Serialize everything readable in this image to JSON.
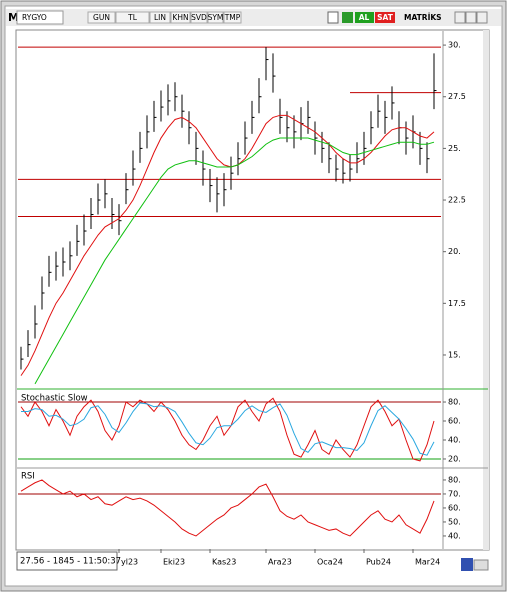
{
  "toolbar": {
    "symbol_prefix": "M",
    "symbol": "RYGYO",
    "buttons": [
      "GUN",
      "TL",
      "LIN",
      "KHN",
      "SVD",
      "SYM",
      "TMP"
    ],
    "buy": "AL",
    "sell": "SAT",
    "brand": "MATRİKS"
  },
  "status": "27.56 - 1845 - 11:50:37",
  "chart_data": [
    {
      "type": "ohlc",
      "color": "#000000",
      "close": [
        14.8,
        15.5,
        16.5,
        18,
        19,
        19.3,
        19.5,
        19.8,
        20.5,
        21,
        21.8,
        22.5,
        22.8,
        21.8,
        21.5,
        23,
        24,
        25,
        25.8,
        26.5,
        27,
        27.3,
        27.5,
        26.8,
        26,
        25,
        24,
        23.2,
        22.8,
        23,
        23.8,
        24.5,
        25.5,
        26.5,
        27.5,
        29.3,
        28.5,
        26.5,
        26,
        25.8,
        26.2,
        26.5,
        25.5,
        25,
        24.5,
        24,
        23.8,
        24,
        24.5,
        25,
        26,
        26.8,
        26.5,
        27.2,
        26,
        25.5,
        25.8,
        25,
        24.5,
        27.8
      ],
      "high": [
        15.4,
        16.2,
        17.4,
        18.8,
        19.8,
        20,
        20.2,
        20.5,
        21.3,
        21.8,
        22.6,
        23.3,
        23.5,
        22.6,
        22.3,
        23.8,
        24.9,
        25.8,
        26.6,
        27.3,
        27.8,
        28.1,
        28.2,
        27.6,
        26.8,
        25.8,
        24.9,
        24,
        23.6,
        23.8,
        24.6,
        25.3,
        26.3,
        27.3,
        28.4,
        29.9,
        29.6,
        27.4,
        26.8,
        26.6,
        27,
        27.3,
        26.3,
        25.8,
        25.3,
        24.7,
        24.5,
        24.7,
        25.3,
        25.8,
        26.8,
        27.6,
        27.3,
        28,
        26.8,
        26.3,
        26.6,
        25.8,
        25.3,
        29.6
      ],
      "low": [
        14.3,
        14.9,
        15.8,
        17.2,
        18.3,
        18.6,
        18.8,
        19.1,
        19.8,
        20.3,
        21.1,
        21.8,
        22.1,
        21.1,
        20.8,
        22.3,
        23.2,
        24.3,
        25,
        25.8,
        26.3,
        26.6,
        26.8,
        26,
        25.2,
        24.2,
        23.2,
        22.4,
        21.9,
        22.2,
        23,
        23.7,
        24.7,
        25.7,
        26.7,
        28.3,
        27.7,
        25.7,
        25.3,
        25,
        25.4,
        25.7,
        24.7,
        24.3,
        23.8,
        23.4,
        23.3,
        23.4,
        23.8,
        24.2,
        25.2,
        26,
        25.7,
        26.4,
        25.2,
        24.7,
        25,
        24.2,
        23.8,
        26.9
      ],
      "series": [
        {
          "color": "#e01010",
          "values": [
            14.0,
            14.5,
            15.2,
            16,
            16.8,
            17.5,
            18,
            18.6,
            19.2,
            19.8,
            20.3,
            20.8,
            21.2,
            21.4,
            21.6,
            22,
            22.5,
            23.2,
            24,
            24.8,
            25.5,
            26,
            26.4,
            26.5,
            26.3,
            26,
            25.5,
            25,
            24.5,
            24.2,
            24.1,
            24.2,
            24.5,
            25,
            25.6,
            26.2,
            26.5,
            26.6,
            26.6,
            26.4,
            26.2,
            26,
            25.8,
            25.5,
            25.2,
            24.8,
            24.5,
            24.3,
            24.3,
            24.5,
            24.8,
            25.2,
            25.6,
            25.9,
            26,
            26,
            25.8,
            25.6,
            25.5,
            25.8
          ]
        },
        {
          "color": "#10c010",
          "values": [
            null,
            null,
            13.6,
            14.2,
            14.8,
            15.4,
            16,
            16.6,
            17.2,
            17.8,
            18.4,
            19,
            19.6,
            20.1,
            20.6,
            21.1,
            21.6,
            22.1,
            22.6,
            23.1,
            23.6,
            24,
            24.2,
            24.3,
            24.4,
            24.4,
            24.3,
            24.2,
            24.1,
            24.1,
            24.1,
            24.2,
            24.4,
            24.6,
            24.9,
            25.2,
            25.4,
            25.5,
            25.5,
            25.5,
            25.5,
            25.5,
            25.4,
            25.3,
            25.2,
            25,
            24.8,
            24.7,
            24.7,
            24.8,
            24.9,
            25,
            25.1,
            25.2,
            25.3,
            25.3,
            25.3,
            25.2,
            25.2,
            25.3
          ]
        }
      ],
      "hlines": [
        {
          "value": 29.9,
          "color": "#c00000"
        },
        {
          "value": 23.5,
          "color": "#c00000"
        },
        {
          "value": 21.7,
          "color": "#c00000"
        },
        {
          "value": 27.7,
          "color": "#c00000",
          "start": 47
        }
      ],
      "ylim": [
        13.45,
        30.44
      ],
      "yticks": [
        {
          "value": 30,
          "label": "30."
        },
        {
          "value": 27.5,
          "label": "27.5"
        },
        {
          "value": 25,
          "label": "25."
        },
        {
          "value": 22.5,
          "label": "22.5"
        },
        {
          "value": 20,
          "label": "20."
        },
        {
          "value": 17.5,
          "label": "17.5"
        },
        {
          "value": 15,
          "label": "15."
        }
      ]
    },
    {
      "type": "line",
      "title": "Stochastic Slow",
      "series": [
        {
          "color": "#e01010",
          "values": [
            75,
            65,
            80,
            70,
            55,
            72,
            60,
            45,
            65,
            75,
            82,
            70,
            50,
            40,
            55,
            80,
            75,
            82,
            78,
            70,
            80,
            72,
            60,
            45,
            35,
            30,
            40,
            55,
            65,
            45,
            55,
            75,
            82,
            70,
            60,
            78,
            84,
            70,
            45,
            25,
            22,
            35,
            50,
            30,
            25,
            40,
            30,
            22,
            35,
            55,
            75,
            82,
            70,
            55,
            62,
            40,
            20,
            18,
            35,
            60
          ]
        },
        {
          "color": "#2aa8e0",
          "values": [
            70,
            70,
            73,
            72,
            65,
            66,
            62,
            55,
            57,
            62,
            74,
            76,
            67,
            53,
            48,
            58,
            70,
            79,
            78,
            75,
            76,
            74,
            70,
            59,
            47,
            37,
            35,
            42,
            53,
            55,
            55,
            62,
            71,
            76,
            71,
            69,
            74,
            78,
            66,
            47,
            31,
            27,
            36,
            38,
            35,
            32,
            32,
            31,
            29,
            37,
            55,
            71,
            76,
            69,
            62,
            52,
            41,
            26,
            24,
            38
          ]
        }
      ],
      "hlines": [
        {
          "value": 80,
          "color": "#a00000"
        },
        {
          "value": 20,
          "color": "#10a010"
        }
      ],
      "ylim": [
        12.6,
        89.5
      ],
      "yticks": [
        {
          "value": 80,
          "label": "80."
        },
        {
          "value": 60,
          "label": "60."
        },
        {
          "value": 40,
          "label": "40."
        },
        {
          "value": 20,
          "label": "20."
        }
      ]
    },
    {
      "type": "line",
      "title": "RSI",
      "series": [
        {
          "color": "#e01010",
          "values": [
            72,
            75,
            78,
            80,
            76,
            73,
            70,
            72,
            68,
            70,
            66,
            68,
            63,
            62,
            65,
            68,
            66,
            67,
            65,
            62,
            58,
            54,
            50,
            45,
            42,
            40,
            44,
            48,
            52,
            55,
            60,
            62,
            66,
            70,
            75,
            77,
            68,
            58,
            54,
            52,
            55,
            50,
            48,
            46,
            44,
            45,
            42,
            40,
            45,
            50,
            55,
            58,
            52,
            50,
            55,
            48,
            45,
            42,
            52,
            65
          ]
        }
      ],
      "hlines": [
        {
          "value": 70,
          "color": "#a00000"
        }
      ],
      "ylim": [
        31.4,
        86.4
      ],
      "yticks": [
        {
          "value": 80,
          "label": "80."
        },
        {
          "value": 70,
          "label": "70."
        },
        {
          "value": 60,
          "label": "60."
        },
        {
          "value": 50,
          "label": "50."
        },
        {
          "value": 40,
          "label": "40."
        }
      ],
      "categories": [
        null,
        null,
        null,
        null,
        null,
        null,
        null,
        null,
        null,
        null,
        null,
        null,
        null,
        null,
        "yl23",
        null,
        null,
        null,
        null,
        null,
        "Eki23",
        null,
        null,
        null,
        null,
        null,
        null,
        "Kas23",
        null,
        null,
        null,
        null,
        null,
        null,
        null,
        "Ara23",
        null,
        null,
        null,
        null,
        null,
        null,
        "Oca24",
        null,
        null,
        null,
        null,
        null,
        null,
        "Pub24",
        null,
        null,
        null,
        null,
        null,
        null,
        "Mar24",
        null,
        null,
        null
      ]
    }
  ]
}
